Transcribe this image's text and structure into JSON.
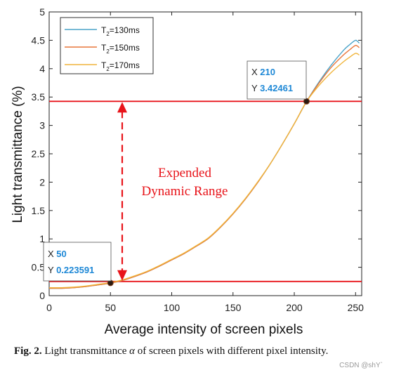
{
  "chart_data": {
    "type": "line",
    "xlabel": "Average intensity of screen pixels",
    "ylabel": "Light transmittance (%)",
    "xlim": [
      0,
      255
    ],
    "ylim": [
      0,
      5
    ],
    "xticks": [
      "0",
      "50",
      "100",
      "150",
      "200",
      "250"
    ],
    "yticks": [
      "0",
      "0.5",
      "1",
      "1.5",
      "2",
      "2.5",
      "3",
      "3.5",
      "4",
      "4.5",
      "5"
    ],
    "grid": false,
    "legend_position": "top-left",
    "legend": [
      {
        "prefix": "T",
        "sub": "2",
        "suffix": "=130ms",
        "color": "#4aa3c9"
      },
      {
        "prefix": "T",
        "sub": "2",
        "suffix": "=150ms",
        "color": "#e8763a"
      },
      {
        "prefix": "T",
        "sub": "2",
        "suffix": "=170ms",
        "color": "#f0b43a"
      }
    ],
    "x": [
      0,
      10,
      20,
      30,
      40,
      50,
      60,
      70,
      80,
      90,
      100,
      110,
      120,
      130,
      140,
      150,
      160,
      170,
      180,
      190,
      200,
      210,
      220,
      230,
      240,
      245,
      250,
      253
    ],
    "series": [
      {
        "name": "T2=130ms",
        "color": "#4aa3c9",
        "values": [
          0.13,
          0.13,
          0.14,
          0.16,
          0.19,
          0.22,
          0.27,
          0.34,
          0.42,
          0.52,
          0.63,
          0.74,
          0.87,
          1.01,
          1.21,
          1.44,
          1.7,
          1.99,
          2.31,
          2.66,
          3.03,
          3.42,
          3.76,
          4.06,
          4.32,
          4.42,
          4.5,
          4.45
        ]
      },
      {
        "name": "T2=150ms",
        "color": "#e8763a",
        "values": [
          0.13,
          0.13,
          0.14,
          0.16,
          0.19,
          0.22,
          0.27,
          0.34,
          0.42,
          0.52,
          0.63,
          0.74,
          0.87,
          1.01,
          1.21,
          1.44,
          1.7,
          1.99,
          2.31,
          2.66,
          3.03,
          3.42,
          3.74,
          4.02,
          4.24,
          4.33,
          4.41,
          4.37
        ]
      },
      {
        "name": "T2=170ms",
        "color": "#f0b43a",
        "values": [
          0.14,
          0.14,
          0.15,
          0.17,
          0.2,
          0.23,
          0.28,
          0.35,
          0.43,
          0.53,
          0.64,
          0.75,
          0.88,
          1.02,
          1.22,
          1.45,
          1.71,
          2.0,
          2.31,
          2.66,
          3.03,
          3.42,
          3.7,
          3.93,
          4.12,
          4.2,
          4.27,
          4.24
        ]
      }
    ],
    "hlines": [
      {
        "y": 3.42461,
        "color": "#e8141a"
      },
      {
        "y": 0.25,
        "color": "#e8141a"
      }
    ],
    "markers": [
      {
        "x": 50,
        "y": 0.223591
      },
      {
        "x": 210,
        "y": 3.42461
      }
    ],
    "datatips": [
      {
        "x_label": "X",
        "x_value": "210",
        "y_label": "Y",
        "y_value": "3.42461",
        "anchor": "top-right"
      },
      {
        "x_label": "X",
        "x_value": "50",
        "y_label": "Y",
        "y_value": "0.223591",
        "anchor": "bottom-left"
      }
    ],
    "annotation": {
      "line1": "Expended",
      "line2": "Dynamic Range",
      "color": "#e8141a"
    }
  },
  "caption": {
    "fig_label": "Fig. 2.",
    "text_before": "Light transmittance",
    "symbol": "α",
    "text_after": "of screen pixels with different pixel intensity."
  },
  "watermark": "CSDN @shY`"
}
